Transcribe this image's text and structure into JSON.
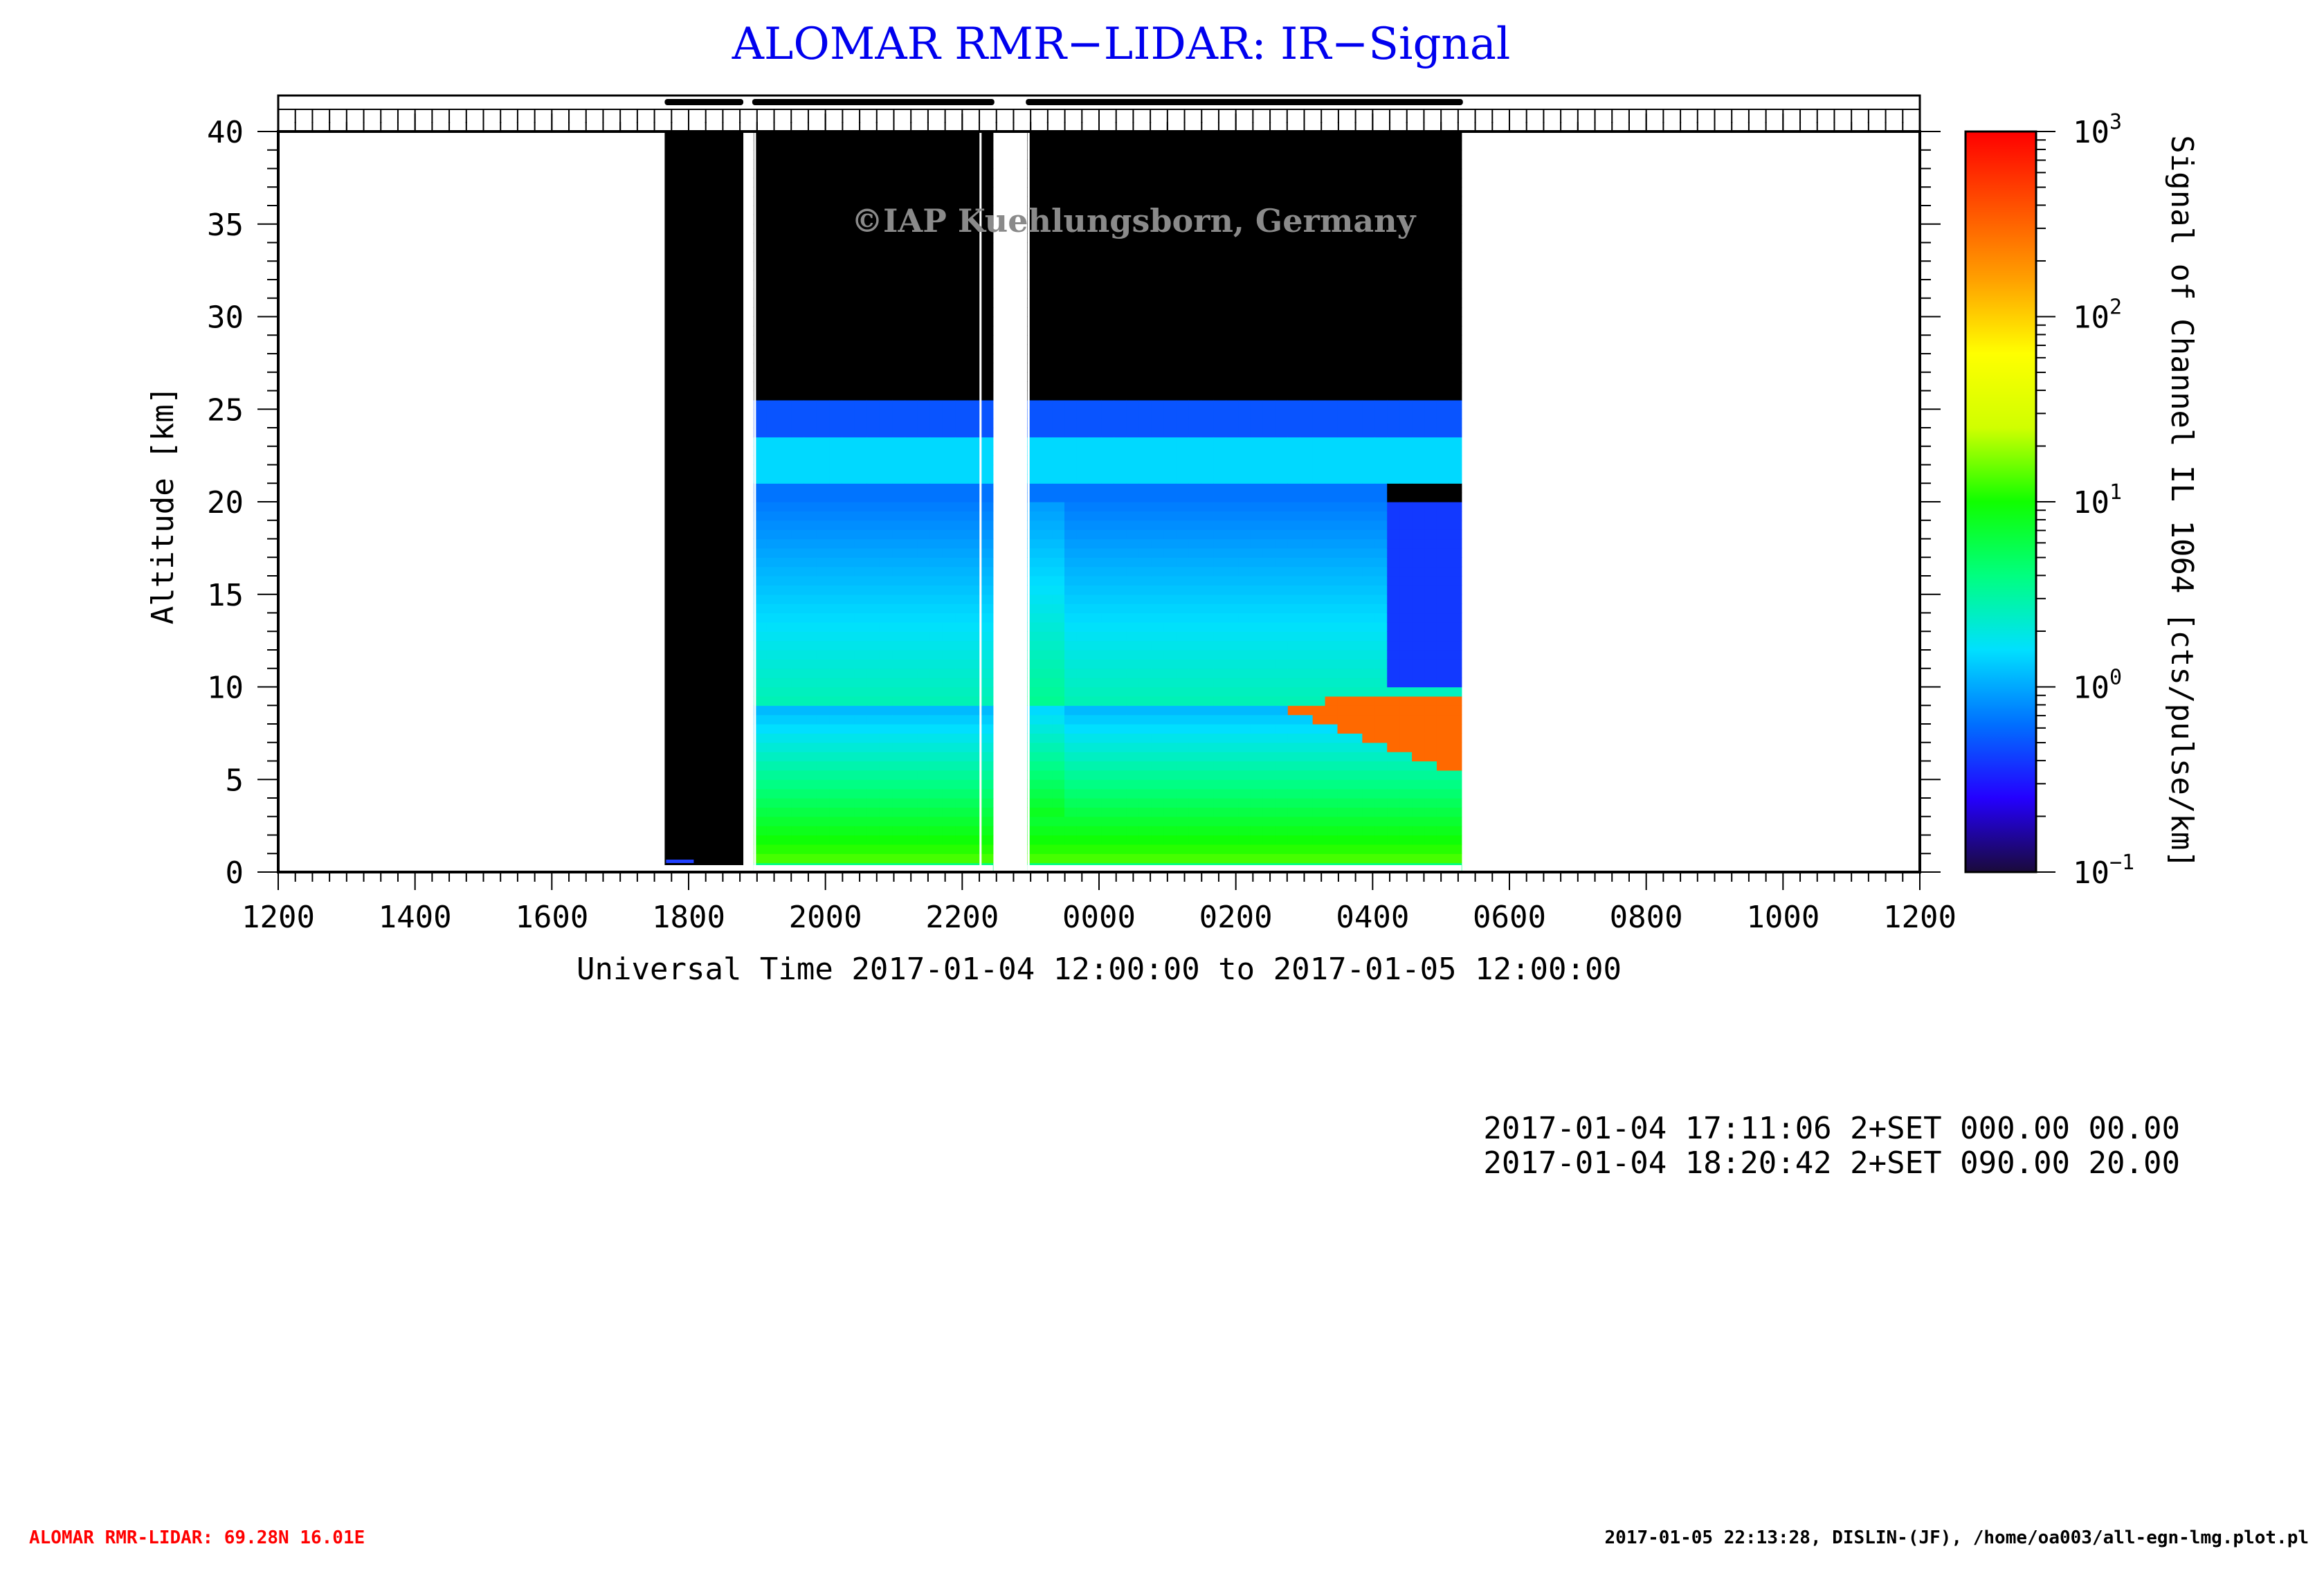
{
  "chart_data": {
    "type": "heatmap",
    "title": "ALOMAR RMR−LIDAR: IR−Signal",
    "xlabel": "Universal Time 2017-01-04 12:00:00 to 2017-01-05 12:00:00",
    "ylabel": "Altitude [km]",
    "x_tick_labels": [
      "1200",
      "1400",
      "1600",
      "1800",
      "2000",
      "2200",
      "0000",
      "0200",
      "0400",
      "0600",
      "0800",
      "1000",
      "1200"
    ],
    "x_ticks_hours": [
      0,
      2,
      4,
      6,
      8,
      10,
      12,
      14,
      16,
      18,
      20,
      22,
      24
    ],
    "xlim_hours": [
      0,
      24
    ],
    "y_tick_labels": [
      "0",
      "5",
      "10",
      "15",
      "20",
      "25",
      "30",
      "35",
      "40"
    ],
    "y_ticks": [
      0,
      5,
      10,
      15,
      20,
      25,
      30,
      35,
      40
    ],
    "ylim": [
      0,
      40
    ],
    "colorbar": {
      "label": "Signal of Channel IL 1064 [cts/pulse/km]",
      "scale": "log",
      "range": [
        0.1,
        1000
      ],
      "tick_labels": [
        {
          "base": "10",
          "exp": "−1",
          "value": 0.1
        },
        {
          "base": "10",
          "exp": "0",
          "value": 1
        },
        {
          "base": "10",
          "exp": "1",
          "value": 10
        },
        {
          "base": "10",
          "exp": "2",
          "value": 100
        },
        {
          "base": "10",
          "exp": "3",
          "value": 1000
        }
      ],
      "colors": [
        "#1a0a3a",
        "#2400ff",
        "#0070ff",
        "#00e0ff",
        "#00ff80",
        "#10ff00",
        "#d0ff00",
        "#ffff00",
        "#ffa000",
        "#ff5000",
        "#ff0000"
      ]
    },
    "measurement_periods_hours": [
      {
        "start": 5.65,
        "end": 6.8,
        "kind": "no-signal"
      },
      {
        "start": 6.95,
        "end": 10.45
      },
      {
        "start": 10.95,
        "end": 17.3
      }
    ],
    "features": [
      {
        "name": "stratospheric layer",
        "alt_km": [
          21,
          25
        ],
        "signal": 1
      },
      {
        "name": "cloud",
        "hours": [
          14.7,
          17.3
        ],
        "alt_km": [
          5,
          9.5
        ],
        "signal": 300
      }
    ],
    "watermark": "©IAP Kuehlungsborn, Germany",
    "info_lines": [
      "2017-01-04 17:11:06 2+SET 000.00 00.00",
      "2017-01-04 18:20:42 2+SET 090.00 20.00"
    ],
    "footer_left": "ALOMAR RMR-LIDAR: 69.28N 16.01E",
    "footer_right": "2017-01-05 22:13:28, DISLIN-(JF), /home/oa003/all-egn-lmg.plot.pl",
    "colors": {
      "title": "#0000ee",
      "footer_left": "#ff0000",
      "watermark": "#8a8a8a",
      "no_signal": "#000000"
    }
  }
}
